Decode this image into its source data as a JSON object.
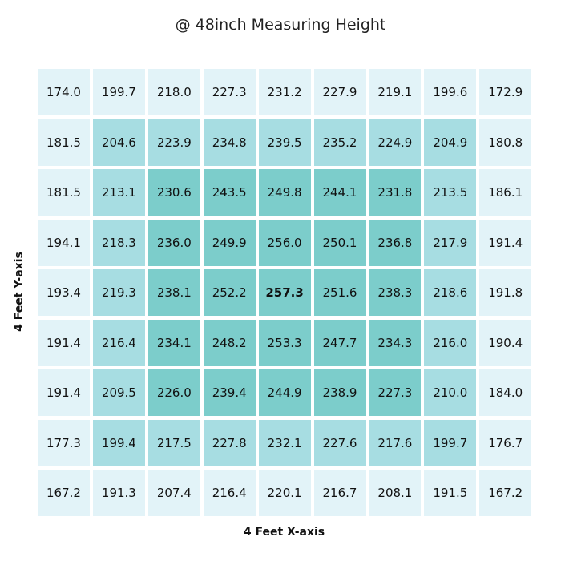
{
  "chart_data": {
    "type": "heatmap",
    "title": "@ 48inch Measuring Height",
    "xlabel": "4 Feet X-axis",
    "ylabel": "4 Feet Y-axis",
    "values": [
      [
        174.0,
        199.7,
        218.0,
        227.3,
        231.2,
        227.9,
        219.1,
        199.6,
        172.9
      ],
      [
        181.5,
        204.6,
        223.9,
        234.8,
        239.5,
        235.2,
        224.9,
        204.9,
        180.8
      ],
      [
        181.5,
        213.1,
        230.6,
        243.5,
        249.8,
        244.1,
        231.8,
        213.5,
        186.1
      ],
      [
        194.1,
        218.3,
        236.0,
        249.9,
        256.0,
        250.1,
        236.8,
        217.9,
        191.4
      ],
      [
        193.4,
        219.3,
        238.1,
        252.2,
        257.3,
        251.6,
        238.3,
        218.6,
        191.8
      ],
      [
        191.4,
        216.4,
        234.1,
        248.2,
        253.3,
        247.7,
        234.3,
        216.0,
        190.4
      ],
      [
        191.4,
        209.5,
        226.0,
        239.4,
        244.9,
        238.9,
        227.3,
        210.0,
        184.0
      ],
      [
        177.3,
        199.4,
        217.5,
        227.8,
        232.1,
        227.6,
        217.6,
        199.7,
        176.7
      ],
      [
        167.2,
        191.3,
        207.4,
        216.4,
        220.1,
        216.7,
        208.1,
        191.5,
        167.2
      ]
    ],
    "highlight_max": 257.3,
    "shade_colors": [
      "#e2f3f8",
      "#a7dde2",
      "#7ccdcb"
    ],
    "shading": "concentric rings: outer ring lightest, second ring medium, inner 5x5 darkest"
  }
}
